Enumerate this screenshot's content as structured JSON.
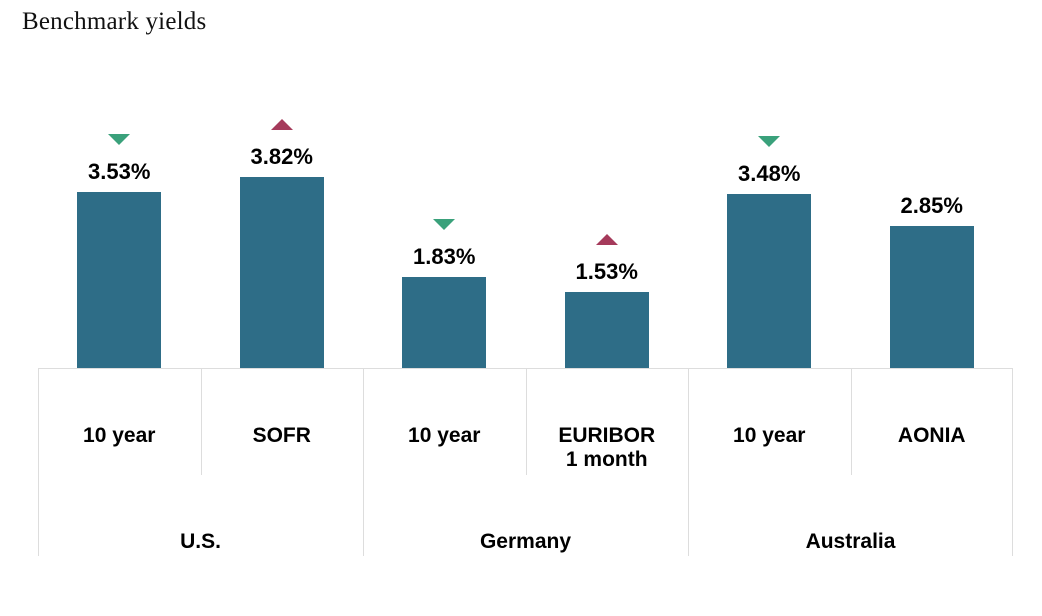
{
  "title": "Benchmark yields",
  "colors": {
    "bar": "#2e6d87",
    "change_up": "#a53a5b",
    "change_down": "#3aa17b",
    "grid": "#dddddd",
    "text": "#000000",
    "title_text": "#111111",
    "background": "#ffffff"
  },
  "chart_data": {
    "type": "bar",
    "title": "Benchmark yields",
    "value_unit": "%",
    "grid": false,
    "y_axis_shown": false,
    "legend": "none",
    "groups": [
      {
        "label": "U.S.",
        "bars": [
          {
            "label": "10 year",
            "value": 3.53,
            "display": "3.53%",
            "change": "down"
          },
          {
            "label": "SOFR",
            "value": 3.82,
            "display": "3.82%",
            "change": "up"
          }
        ]
      },
      {
        "label": "Germany",
        "bars": [
          {
            "label": "10 year",
            "value": 1.83,
            "display": "1.83%",
            "change": "down"
          },
          {
            "label": "EURIBOR\n1 month",
            "value": 1.53,
            "display": "1.53%",
            "change": "up"
          }
        ]
      },
      {
        "label": "Australia",
        "bars": [
          {
            "label": "10 year",
            "value": 3.48,
            "display": "3.48%",
            "change": "down"
          },
          {
            "label": "AONIA",
            "value": 2.85,
            "display": "2.85%",
            "change": "none"
          }
        ]
      }
    ]
  }
}
